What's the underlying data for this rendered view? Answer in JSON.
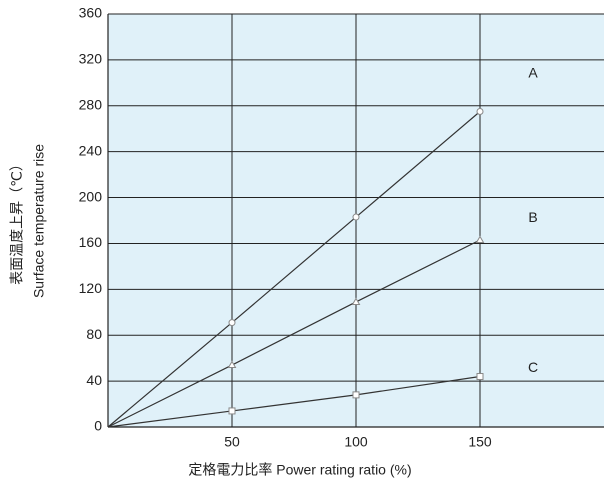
{
  "chart_data": {
    "type": "line",
    "xlabel": "定格電力比率 Power rating ratio (%)",
    "ylabel": [
      "表面温度上昇（℃）",
      "Surface temperature rise"
    ],
    "x": [
      0,
      50,
      100,
      150
    ],
    "series": [
      {
        "name": "A",
        "color": "#333333",
        "marker": "circle",
        "values": [
          0,
          91,
          183,
          275
        ]
      },
      {
        "name": "B",
        "color": "#333333",
        "marker": "triangle",
        "values": [
          0,
          54,
          109,
          163
        ]
      },
      {
        "name": "C",
        "color": "#333333",
        "marker": "square",
        "values": [
          0,
          14,
          28,
          44
        ]
      }
    ],
    "xlim": [
      0,
      200
    ],
    "xticks": [
      50,
      100,
      150
    ],
    "ylim": [
      0,
      360
    ],
    "yticks": [
      0,
      40,
      80,
      120,
      160,
      200,
      240,
      280,
      320,
      360
    ],
    "grid": true
  }
}
